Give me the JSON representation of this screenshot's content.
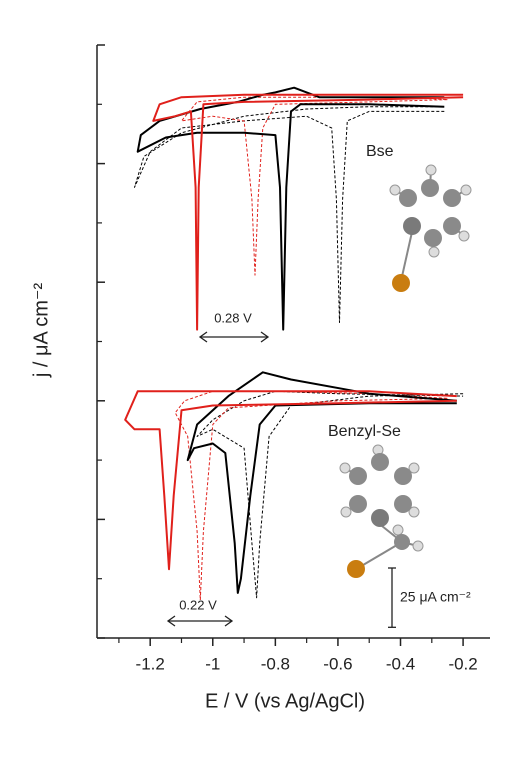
{
  "chart_data": {
    "type": "line",
    "xlabel": "E / V (vs Ag/AgCl)",
    "ylabel": "j / μA cm⁻²",
    "xlim": [
      -1.37,
      -0.114
    ],
    "xticks": [
      -1.2,
      -1.0,
      -0.8,
      -0.6,
      -0.4,
      -0.2
    ],
    "xminorticks": [
      -1.3,
      -1.1,
      -0.9,
      -0.7,
      -0.5,
      -0.3
    ],
    "ylim": [
      0,
      250
    ],
    "yticks": [
      0,
      50,
      100,
      150,
      200,
      250
    ],
    "yminorticks": [
      25,
      75,
      125,
      175,
      225
    ],
    "annotations": [
      "Bse",
      "Benzyl-Se",
      "0.28 V",
      "0.22 V"
    ],
    "scale_bar": {
      "value": 25,
      "label": "25 μA cm⁻²"
    },
    "series": [
      {
        "color": "#000000",
        "dash": true,
        "x": [
          -0.26,
          -0.5,
          -0.57,
          -0.585,
          -0.595,
          -0.605,
          -0.62,
          -0.7,
          -0.9,
          -1.1,
          -1.2,
          -1.25,
          -1.22,
          -1.1,
          -0.9,
          -0.7,
          -0.5,
          -0.26
        ],
        "values": [
          222,
          222,
          218,
          185,
          133,
          185,
          215,
          220,
          218,
          215,
          205,
          190,
          203,
          213,
          220,
          223,
          224,
          224
        ]
      },
      {
        "color": "#e0201b",
        "dash": true,
        "x": [
          -0.25,
          -0.5,
          -0.8,
          -0.84,
          -0.855,
          -0.865,
          -0.875,
          -0.9,
          -1.0,
          -1.1,
          -1.05,
          -0.9,
          -0.7,
          -0.4,
          -0.25
        ],
        "values": [
          227,
          226,
          225,
          215,
          185,
          153,
          185,
          218,
          220,
          218,
          226,
          228,
          228,
          228,
          227
        ]
      },
      {
        "color": "#000000",
        "dash": false,
        "x": [
          -0.26,
          -0.5,
          -0.72,
          -0.75,
          -0.765,
          -0.775,
          -0.785,
          -0.8,
          -0.9,
          -1.05,
          -1.15,
          -1.24,
          -1.23,
          -1.17,
          -1.04,
          -0.92,
          -0.84,
          -0.8,
          -0.74,
          -0.66,
          -0.5,
          -0.26
        ],
        "values": [
          224,
          225,
          225,
          222,
          190,
          130,
          190,
          212,
          213,
          213,
          211,
          205,
          212,
          218,
          223,
          226,
          229,
          230,
          232,
          228,
          228,
          228
        ]
      },
      {
        "color": "#e0201b",
        "dash": false,
        "x": [
          -0.2,
          -0.5,
          -0.9,
          -1.03,
          -1.045,
          -1.05,
          -1.055,
          -1.07,
          -1.12,
          -1.19,
          -1.17,
          -1.1,
          -0.9,
          -0.6,
          -0.2
        ],
        "values": [
          228,
          227,
          226,
          225,
          190,
          130,
          190,
          222,
          220,
          218,
          225,
          228,
          229,
          229,
          229
        ]
      },
      {
        "color": "#000000",
        "dash": true,
        "x": [
          -0.2,
          -0.5,
          -0.75,
          -0.82,
          -0.85,
          -0.86,
          -0.875,
          -0.9,
          -1.0,
          -1.05,
          -1.0,
          -0.9,
          -0.8,
          -0.6,
          -0.2
        ],
        "values": [
          103,
          102,
          98,
          85,
          40,
          17,
          40,
          80,
          88,
          85,
          92,
          100,
          104,
          103,
          102
        ]
      },
      {
        "color": "#e0201b",
        "dash": true,
        "x": [
          -0.25,
          -0.6,
          -0.95,
          -1.0,
          -1.03,
          -1.04,
          -1.05,
          -1.08,
          -1.12,
          -1.09,
          -1.0,
          -0.8,
          -0.5,
          -0.25
        ],
        "values": [
          101,
          100,
          97,
          90,
          45,
          16,
          45,
          85,
          95,
          100,
          104,
          104,
          103,
          101
        ]
      },
      {
        "color": "#000000",
        "dash": false,
        "x": [
          -0.22,
          -0.5,
          -0.8,
          -0.85,
          -0.88,
          -0.91,
          -0.92,
          -0.93,
          -0.96,
          -1.0,
          -1.06,
          -1.08,
          -1.05,
          -0.95,
          -0.84,
          -0.75,
          -0.5,
          -0.22
        ],
        "values": [
          99,
          99,
          98,
          90,
          60,
          25,
          19,
          40,
          78,
          82,
          80,
          75,
          90,
          102,
          112,
          109,
          103,
          100
        ]
      },
      {
        "color": "#e0201b",
        "dash": false,
        "x": [
          -0.22,
          -0.6,
          -1.0,
          -1.1,
          -1.125,
          -1.14,
          -1.155,
          -1.17,
          -1.25,
          -1.28,
          -1.24,
          -1.1,
          -0.8,
          -0.5,
          -0.22
        ],
        "values": [
          100,
          99,
          98,
          96,
          60,
          29,
          60,
          88,
          88,
          92,
          104,
          104,
          104,
          104,
          102
        ]
      }
    ]
  }
}
